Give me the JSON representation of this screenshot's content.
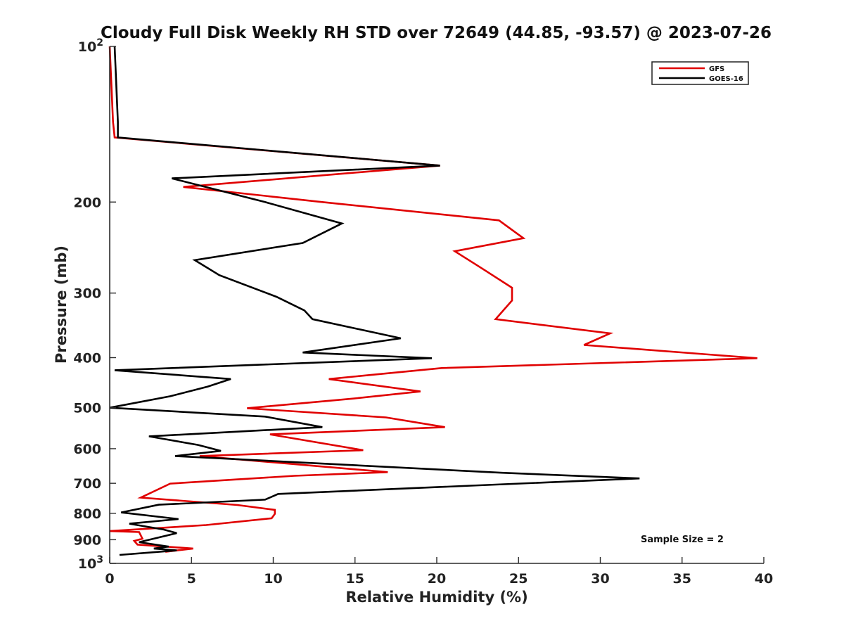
{
  "chart_data": {
    "type": "line",
    "title": "Cloudy Full Disk Weekly RH STD over 72649 (44.85, -93.57) @ 2023-07-26",
    "xlabel": "Relative Humidity (%)",
    "ylabel": "Pressure (mb)",
    "xlim": [
      0,
      40
    ],
    "ylim": [
      100,
      1000
    ],
    "y_scale": "log",
    "y_inverted": true,
    "grid": false,
    "legend_position": "top-right",
    "x_ticks": [
      0,
      5,
      10,
      15,
      20,
      25,
      30,
      35,
      40
    ],
    "y_ticks": [
      {
        "value": 100,
        "label": "10",
        "exp": "2"
      },
      {
        "value": 200,
        "label": "200"
      },
      {
        "value": 300,
        "label": "300"
      },
      {
        "value": 400,
        "label": "400"
      },
      {
        "value": 500,
        "label": "500"
      },
      {
        "value": 600,
        "label": "600"
      },
      {
        "value": 700,
        "label": "700"
      },
      {
        "value": 800,
        "label": "800"
      },
      {
        "value": 900,
        "label": "900"
      },
      {
        "value": 1000,
        "label": "10",
        "exp": "3"
      }
    ],
    "annotation": "Sample Size = 2",
    "series": [
      {
        "name": "GFS",
        "color": "#e00000",
        "points": [
          [
            0.0,
            100
          ],
          [
            0.2,
            140
          ],
          [
            0.3,
            150
          ],
          [
            20.2,
            170
          ],
          [
            4.5,
            187
          ],
          [
            13.0,
            200
          ],
          [
            23.8,
            217
          ],
          [
            25.3,
            235
          ],
          [
            21.1,
            249
          ],
          [
            22.7,
            268
          ],
          [
            24.6,
            293
          ],
          [
            24.6,
            310
          ],
          [
            23.6,
            337
          ],
          [
            30.6,
            359
          ],
          [
            29.0,
            378
          ],
          [
            39.6,
            401
          ],
          [
            20.3,
            419
          ],
          [
            13.4,
            440
          ],
          [
            19.0,
            465
          ],
          [
            14.9,
            480
          ],
          [
            8.4,
            501
          ],
          [
            16.9,
            522
          ],
          [
            20.5,
            545
          ],
          [
            9.8,
            563
          ],
          [
            15.5,
            604
          ],
          [
            5.5,
            620
          ],
          [
            17.0,
            666
          ],
          [
            11.3,
            677
          ],
          [
            3.7,
            701
          ],
          [
            1.9,
            746
          ],
          [
            7.8,
            771
          ],
          [
            10.1,
            788
          ],
          [
            10.1,
            802
          ],
          [
            9.9,
            818
          ],
          [
            5.9,
            843
          ],
          [
            0.0,
            866
          ],
          [
            1.8,
            870
          ],
          [
            2.0,
            896
          ],
          [
            1.5,
            905
          ],
          [
            1.7,
            920
          ],
          [
            5.1,
            936
          ],
          [
            3.4,
            950
          ]
        ]
      },
      {
        "name": "GOES-16",
        "color": "#000000",
        "points": [
          [
            0.3,
            100
          ],
          [
            0.5,
            140
          ],
          [
            0.5,
            150
          ],
          [
            20.2,
            170
          ],
          [
            3.8,
            180
          ],
          [
            9.5,
            200
          ],
          [
            14.2,
            220
          ],
          [
            11.8,
            240
          ],
          [
            5.2,
            259
          ],
          [
            6.7,
            277
          ],
          [
            10.2,
            305
          ],
          [
            11.9,
            324
          ],
          [
            12.4,
            337
          ],
          [
            17.8,
            367
          ],
          [
            11.8,
            391
          ],
          [
            19.7,
            401
          ],
          [
            0.3,
            423
          ],
          [
            7.4,
            440
          ],
          [
            6.0,
            455
          ],
          [
            3.7,
            475
          ],
          [
            0.0,
            500
          ],
          [
            9.5,
            520
          ],
          [
            13.0,
            545
          ],
          [
            2.4,
            568
          ],
          [
            5.4,
            590
          ],
          [
            6.8,
            606
          ],
          [
            4.0,
            620
          ],
          [
            24.0,
            668
          ],
          [
            32.4,
            685
          ],
          [
            10.3,
            734
          ],
          [
            9.5,
            753
          ],
          [
            3.0,
            770
          ],
          [
            0.7,
            797
          ],
          [
            4.2,
            821
          ],
          [
            1.2,
            838
          ],
          [
            3.3,
            860
          ],
          [
            4.1,
            874
          ],
          [
            1.8,
            910
          ],
          [
            3.6,
            928
          ],
          [
            2.7,
            936
          ],
          [
            4.1,
            944
          ],
          [
            0.6,
            963
          ]
        ]
      }
    ]
  }
}
